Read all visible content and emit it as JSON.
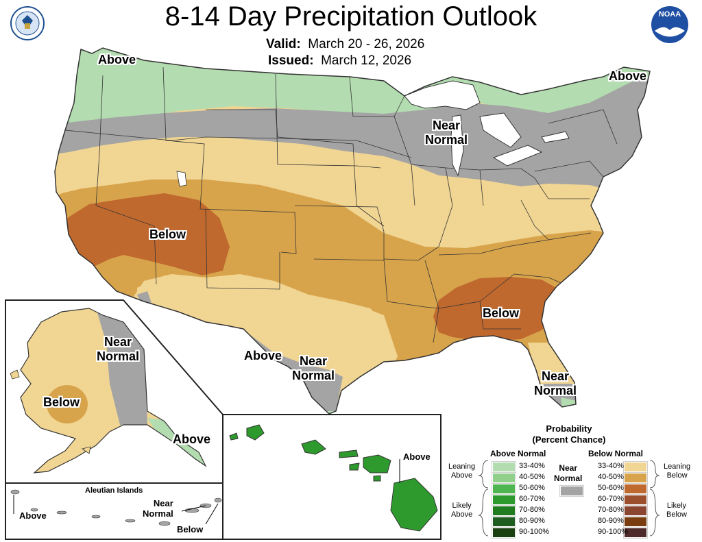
{
  "title": "8-14 Day Precipitation Outlook",
  "valid_label": "Valid:",
  "valid_value": "March 20 - 26, 2026",
  "issued_label": "Issued:",
  "issued_value": "March 12, 2026",
  "logos": {
    "left": "us-department-of-commerce-seal",
    "right": "noaa-logo",
    "right_text": "NOAA"
  },
  "region_labels": {
    "nw_above": "Above",
    "ne_above": "Above",
    "mw_near_normal": "Near\nNormal",
    "sw_below": "Below",
    "se_below": "Below",
    "tx_above": "Above",
    "tx_near_normal": "Near\nNormal",
    "fl_near_normal": "Near\nNormal",
    "ak_near_normal": "Near\nNormal",
    "ak_below": "Below",
    "ak_above": "Above",
    "hi_above": "Above",
    "aleutian_title": "Aleutian Islands",
    "aleutian_above": "Above",
    "aleutian_near_normal": "Near\nNormal",
    "aleutian_below": "Below"
  },
  "legend": {
    "title": "Probability\n(Percent Chance)",
    "above_title": "Above Normal",
    "below_title": "Below Normal",
    "near_title": "Near\nNormal",
    "near_color": "#a4a4a4",
    "leaning_above": "Leaning\nAbove",
    "likely_above": "Likely\nAbove",
    "leaning_below": "Leaning\nBelow",
    "likely_below": "Likely\nBelow",
    "above": [
      {
        "range": "33-40%",
        "color": "#b3dcb0"
      },
      {
        "range": "40-50%",
        "color": "#90d08a"
      },
      {
        "range": "50-60%",
        "color": "#4fb64f"
      },
      {
        "range": "60-70%",
        "color": "#2e9a2e"
      },
      {
        "range": "70-80%",
        "color": "#1f7d1f"
      },
      {
        "range": "80-90%",
        "color": "#1f5e1f"
      },
      {
        "range": "90-100%",
        "color": "#1b4010"
      }
    ],
    "below": [
      {
        "range": "33-40%",
        "color": "#f1d593"
      },
      {
        "range": "40-50%",
        "color": "#d8a44b"
      },
      {
        "range": "50-60%",
        "color": "#c0692f"
      },
      {
        "range": "60-70%",
        "color": "#9c4f2c"
      },
      {
        "range": "70-80%",
        "color": "#8a4630"
      },
      {
        "range": "80-90%",
        "color": "#7a3d10"
      },
      {
        "range": "90-100%",
        "color": "#4f2a2a"
      }
    ]
  }
}
